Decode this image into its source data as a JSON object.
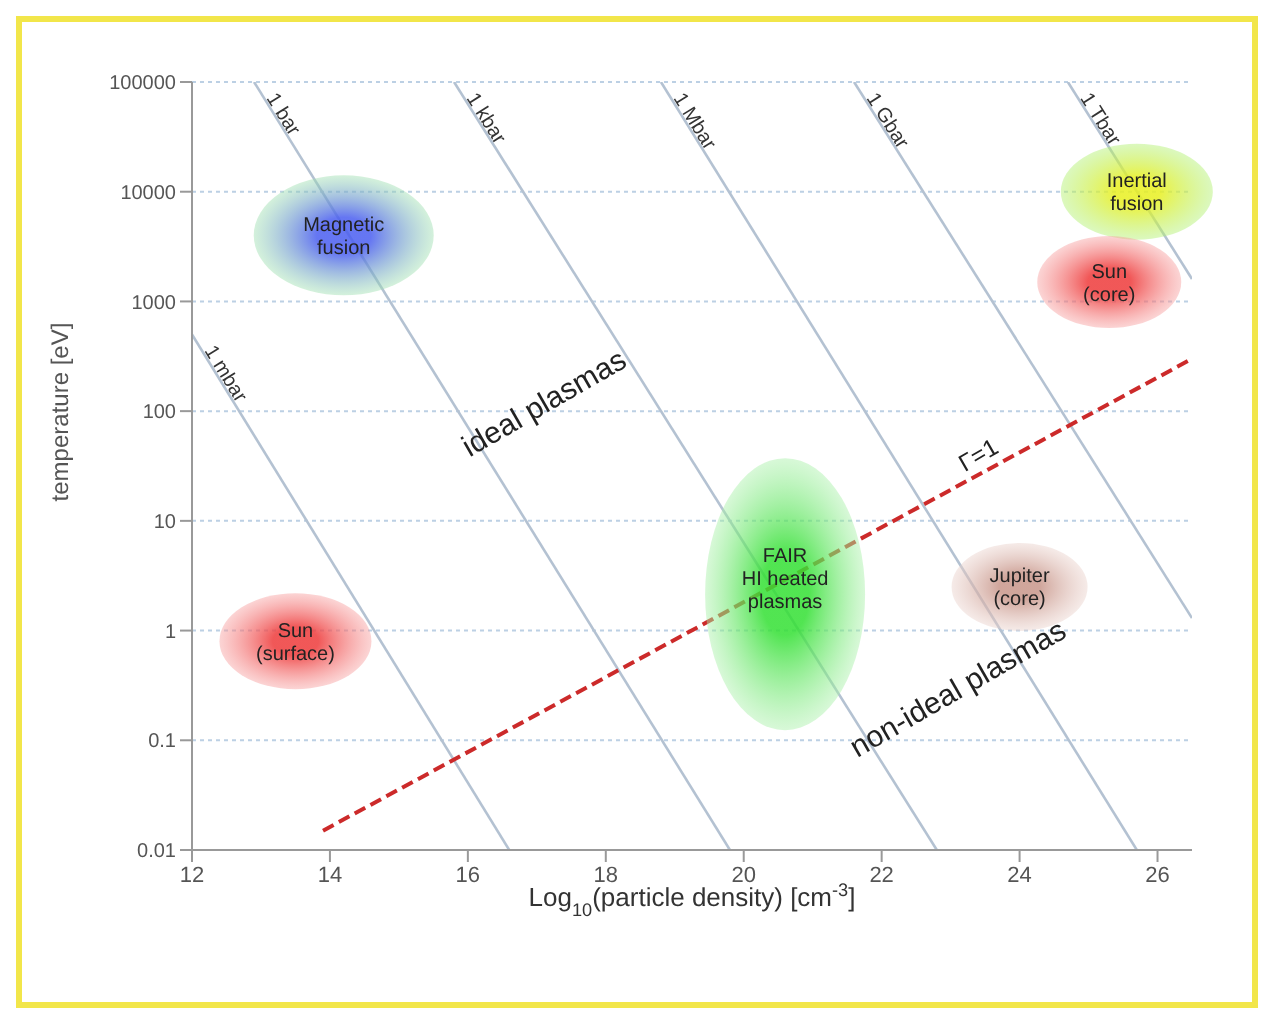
{
  "chart_data": {
    "type": "line",
    "xlabel": "Log$_{10}$(particle density) [cm$^{-3}$]",
    "ylabel": "temperature [eV]",
    "xlim": [
      12,
      26.5
    ],
    "xticks": [
      12,
      14,
      16,
      18,
      20,
      22,
      24,
      26
    ],
    "ylim": [
      0.01,
      100000
    ],
    "yticks": [
      0.01,
      0.1,
      1,
      10,
      100,
      1000,
      10000,
      100000
    ],
    "log": "y",
    "grid": "y",
    "legend": false,
    "marker": "none",
    "series": [
      {
        "name": "1 mbar",
        "color": "#b4c2d2",
        "x": [
          12,
          16.6
        ],
        "values": [
          500,
          0.01
        ]
      },
      {
        "name": "1 bar",
        "color": "#b4c2d2",
        "x": [
          12.9,
          19.8
        ],
        "values": [
          100000,
          0.01
        ]
      },
      {
        "name": "1 kbar",
        "color": "#b4c2d2",
        "x": [
          15.8,
          22.8
        ],
        "values": [
          100000,
          0.01
        ]
      },
      {
        "name": "1 Mbar",
        "color": "#b4c2d2",
        "x": [
          18.8,
          25.7
        ],
        "values": [
          100000,
          0.01
        ]
      },
      {
        "name": "1 Gbar",
        "color": "#b4c2d2",
        "x": [
          21.6,
          26.5
        ],
        "values": [
          100000,
          1.3
        ]
      },
      {
        "name": "1 Tbar",
        "color": "#b4c2d2",
        "x": [
          24.7,
          26.5
        ],
        "values": [
          100000,
          1600
        ]
      },
      {
        "color": "#cc2a2a",
        "line_style": "dashed",
        "x": [
          13.9,
          26.5
        ],
        "values": [
          0.015,
          300
        ]
      }
    ],
    "annotations": [
      "Magnetic\nfusion",
      "Inertial\nfusion",
      "Sun\n(core)",
      "Sun\n(surface)",
      "FAIR\nHI heated\nplasmas",
      "Jupiter\n(core)",
      "ideal plasmas",
      "non-ideal plasmas",
      "Γ=1"
    ]
  }
}
